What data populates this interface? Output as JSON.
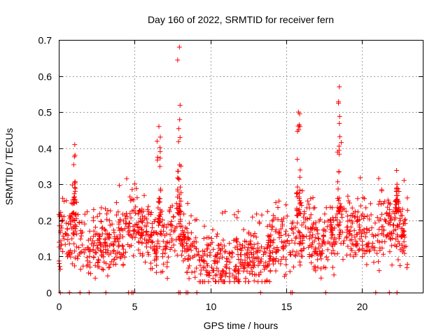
{
  "chart_data": {
    "type": "scatter",
    "title": "Day 160 of 2022, SRMTID for receiver fern",
    "xlabel": "GPS time / hours",
    "ylabel": "SRMTID / TECUs",
    "xlim": [
      0,
      24
    ],
    "ylim": [
      0,
      0.7
    ],
    "xticks": [
      0,
      5,
      10,
      15,
      20
    ],
    "yticks": [
      0,
      0.1,
      0.2,
      0.3,
      0.4,
      0.5,
      0.6,
      0.7
    ],
    "grid": true,
    "marker": "plus",
    "series_color": "#ff0000",
    "series": [
      {
        "name": "SRMTID",
        "baseline_points": [
          [
            0,
            0.14
          ],
          [
            0.5,
            0.17
          ],
          [
            1,
            0.15
          ],
          [
            2,
            0.13
          ],
          [
            3,
            0.14
          ],
          [
            4,
            0.15
          ],
          [
            5,
            0.19
          ],
          [
            6,
            0.15
          ],
          [
            7,
            0.14
          ],
          [
            7.8,
            0.18
          ],
          [
            8.5,
            0.12
          ],
          [
            9.5,
            0.09
          ],
          [
            11,
            0.08
          ],
          [
            12.5,
            0.1
          ],
          [
            13.5,
            0.11
          ],
          [
            14.5,
            0.14
          ],
          [
            15.5,
            0.16
          ],
          [
            16.5,
            0.17
          ],
          [
            17,
            0.13
          ],
          [
            18,
            0.17
          ],
          [
            19,
            0.18
          ],
          [
            20,
            0.15
          ],
          [
            21,
            0.15
          ],
          [
            21.5,
            0.19
          ],
          [
            22.5,
            0.17
          ],
          [
            22.9,
            0.14
          ]
        ],
        "peaks": [
          {
            "x": 1.05,
            "ymax": 0.41
          },
          {
            "x": 6.6,
            "ymax": 0.46
          },
          {
            "x": 7.95,
            "ymax": 0.68
          },
          {
            "x": 15.8,
            "ymax": 0.5
          },
          {
            "x": 18.5,
            "ymax": 0.57
          },
          {
            "x": 22.3,
            "ymax": 0.3
          }
        ],
        "range": [
          0.03,
          0.68
        ],
        "x_extent": [
          0,
          23
        ]
      }
    ],
    "zero_markers_x": [
      0.1,
      0.7,
      1.4,
      2.0,
      3.1,
      4.6,
      4.8,
      4.9,
      7.9,
      8.0,
      8.4,
      8.5,
      9.1,
      13.3,
      15.3,
      15.4,
      17.6,
      20.9,
      21.8,
      22.3
    ]
  }
}
